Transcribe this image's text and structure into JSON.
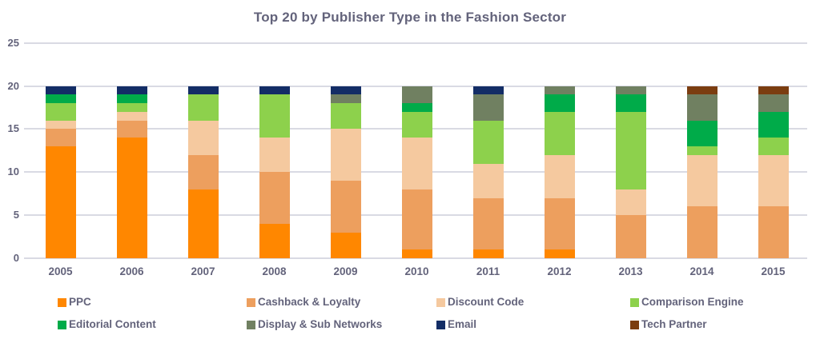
{
  "title": "Top 20 by Publisher Type in the Fashion Sector",
  "colors": {
    "text": "#63637B",
    "grid": "#D9DAE3",
    "background": "#FFFFFF"
  },
  "chart_data": {
    "type": "bar",
    "stacked": true,
    "title": "Top 20 by Publisher Type in the Fashion Sector",
    "xlabel": "",
    "ylabel": "",
    "categories": [
      "2005",
      "2006",
      "2007",
      "2008",
      "2009",
      "2010",
      "2011",
      "2012",
      "2013",
      "2014",
      "2015"
    ],
    "series": [
      {
        "name": "PPC",
        "color": "#FF8700",
        "values": [
          13,
          14,
          8,
          4,
          3,
          1,
          1,
          1,
          0,
          0,
          0
        ]
      },
      {
        "name": "Cashback & Loyalty",
        "color": "#ED9F5E",
        "values": [
          2,
          2,
          4,
          6,
          6,
          7,
          6,
          6,
          5,
          6,
          6
        ]
      },
      {
        "name": "Discount Code",
        "color": "#F5C99F",
        "values": [
          1,
          1,
          4,
          4,
          6,
          6,
          4,
          5,
          3,
          6,
          6
        ]
      },
      {
        "name": "Comparison Engine",
        "color": "#8DD14C",
        "values": [
          2,
          1,
          3,
          5,
          3,
          3,
          5,
          5,
          9,
          1,
          2
        ]
      },
      {
        "name": "Editorial Content",
        "color": "#00AB49",
        "values": [
          1,
          1,
          0,
          0,
          0,
          1,
          0,
          2,
          2,
          3,
          3
        ]
      },
      {
        "name": "Display & Sub Networks",
        "color": "#708061",
        "values": [
          0,
          0,
          0,
          0,
          1,
          2,
          3,
          1,
          1,
          3,
          2
        ]
      },
      {
        "name": "Email",
        "color": "#132D66",
        "values": [
          1,
          1,
          1,
          1,
          1,
          0,
          1,
          0,
          0,
          0,
          0
        ]
      },
      {
        "name": "Tech Partner",
        "color": "#7B3D10",
        "values": [
          0,
          0,
          0,
          0,
          0,
          0,
          0,
          0,
          0,
          1,
          1
        ]
      }
    ],
    "ylim": [
      0,
      25
    ],
    "yticks": [
      0,
      5,
      10,
      15,
      20,
      25
    ],
    "grid": true,
    "legend_position": "bottom"
  }
}
